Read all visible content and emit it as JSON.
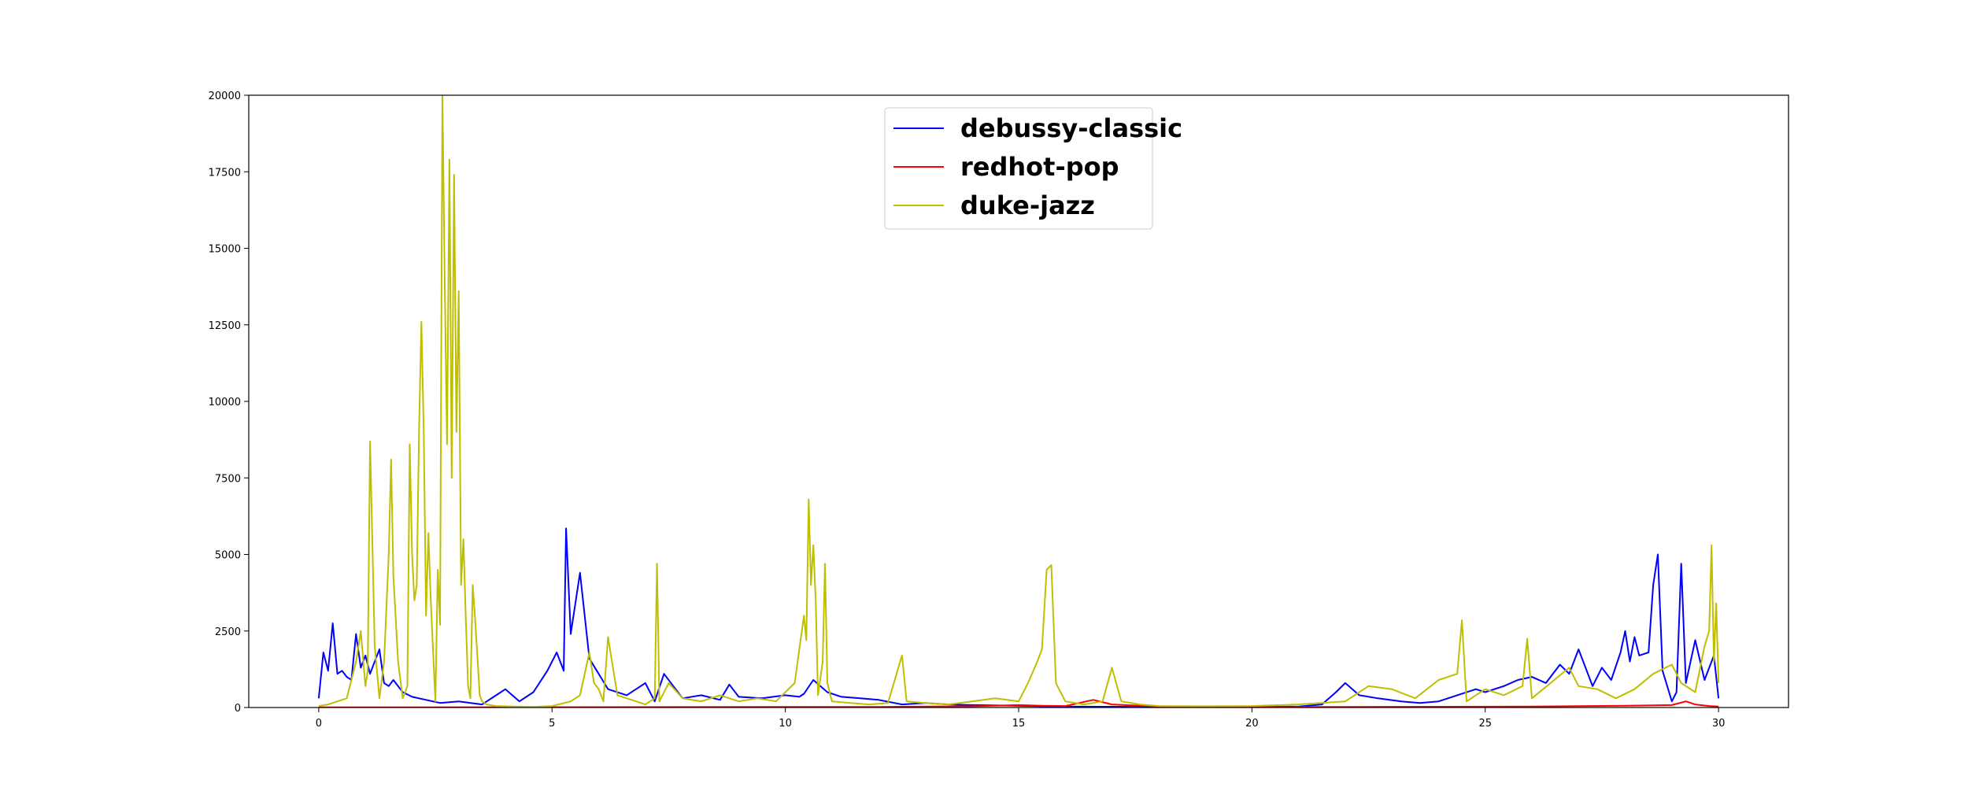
{
  "chart_data": {
    "type": "line",
    "title": "",
    "xlabel": "",
    "ylabel": "",
    "xlim": [
      -1.5,
      31.5
    ],
    "ylim": [
      0,
      20000
    ],
    "xticks": [
      0,
      5,
      10,
      15,
      20,
      25,
      30
    ],
    "xtick_labels": [
      "0",
      "5",
      "10",
      "15",
      "20",
      "25",
      "30"
    ],
    "yticks": [
      0,
      2500,
      5000,
      7500,
      10000,
      12500,
      15000,
      17500,
      20000
    ],
    "ytick_labels": [
      "0",
      "2500",
      "5000",
      "7500",
      "10000",
      "12500",
      "15000",
      "17500",
      "20000"
    ],
    "grid": false,
    "legend_position": "upper-center",
    "series": [
      {
        "name": "debussy-classic",
        "color": "#0000ff",
        "x": [
          0,
          0.1,
          0.2,
          0.3,
          0.4,
          0.5,
          0.6,
          0.7,
          0.8,
          0.9,
          1.0,
          1.1,
          1.2,
          1.3,
          1.4,
          1.5,
          1.6,
          1.8,
          2.0,
          2.3,
          2.6,
          3.0,
          3.5,
          4.0,
          4.3,
          4.6,
          4.9,
          5.1,
          5.25,
          5.3,
          5.4,
          5.5,
          5.6,
          5.8,
          6.2,
          6.6,
          7.0,
          7.2,
          7.4,
          7.8,
          8.2,
          8.6,
          8.8,
          9.0,
          9.5,
          10.0,
          10.3,
          10.4,
          10.6,
          10.9,
          11.2,
          11.6,
          12.0,
          12.5,
          13.0,
          13.5,
          14.0,
          15.0,
          15.5,
          16.0,
          17.0,
          18.0,
          19.0,
          20.0,
          21.0,
          21.5,
          21.8,
          22.0,
          22.3,
          22.7,
          23.2,
          23.6,
          24.0,
          24.4,
          24.8,
          25.0,
          25.4,
          25.7,
          26.0,
          26.3,
          26.6,
          26.8,
          27.0,
          27.3,
          27.5,
          27.7,
          27.9,
          28.0,
          28.1,
          28.2,
          28.3,
          28.5,
          28.6,
          28.7,
          28.8,
          29.0,
          29.1,
          29.2,
          29.3,
          29.5,
          29.7,
          29.9,
          30.0
        ],
        "values": [
          300,
          1800,
          1200,
          2750,
          1100,
          1200,
          1000,
          900,
          2400,
          1300,
          1700,
          1100,
          1500,
          1900,
          800,
          700,
          900,
          500,
          350,
          250,
          150,
          200,
          100,
          600,
          200,
          500,
          1200,
          1800,
          1200,
          5850,
          2400,
          3400,
          4400,
          1600,
          600,
          400,
          800,
          200,
          1100,
          300,
          400,
          250,
          750,
          350,
          300,
          400,
          350,
          450,
          900,
          500,
          350,
          300,
          250,
          100,
          150,
          100,
          80,
          60,
          40,
          30,
          25,
          20,
          20,
          20,
          30,
          100,
          500,
          800,
          400,
          300,
          200,
          150,
          200,
          400,
          600,
          500,
          700,
          900,
          1000,
          800,
          1400,
          1100,
          1900,
          700,
          1300,
          900,
          1800,
          2500,
          1500,
          2300,
          1700,
          1800,
          4000,
          5000,
          1200,
          200,
          500,
          4700,
          800,
          2200,
          900,
          1700,
          300
        ],
        "peaks_note": ""
      },
      {
        "name": "redhot-pop",
        "color": "#ff0000",
        "x": [
          0,
          2,
          4,
          6,
          8,
          10,
          12,
          14,
          15,
          15.5,
          16,
          16.3,
          16.6,
          17,
          18,
          20,
          22,
          24,
          26,
          28,
          29,
          29.3,
          29.5,
          29.8,
          30
        ],
        "values": [
          5,
          8,
          10,
          12,
          15,
          18,
          20,
          40,
          80,
          60,
          50,
          150,
          250,
          100,
          30,
          15,
          20,
          25,
          30,
          60,
          80,
          200,
          100,
          50,
          30
        ]
      },
      {
        "name": "duke-jazz",
        "color": "#bfbf00",
        "x": [
          0,
          0.2,
          0.4,
          0.6,
          0.8,
          0.9,
          1.0,
          1.05,
          1.1,
          1.2,
          1.3,
          1.4,
          1.5,
          1.55,
          1.6,
          1.7,
          1.8,
          1.9,
          1.95,
          2.0,
          2.05,
          2.1,
          2.15,
          2.2,
          2.25,
          2.3,
          2.35,
          2.4,
          2.5,
          2.55,
          2.6,
          2.65,
          2.7,
          2.75,
          2.8,
          2.85,
          2.9,
          2.95,
          3.0,
          3.05,
          3.1,
          3.15,
          3.2,
          3.25,
          3.3,
          3.35,
          3.4,
          3.45,
          3.5,
          3.6,
          3.8,
          4.2,
          4.6,
          5.0,
          5.4,
          5.6,
          5.8,
          5.9,
          6.0,
          6.1,
          6.2,
          6.4,
          6.8,
          7.0,
          7.2,
          7.25,
          7.3,
          7.5,
          7.8,
          8.2,
          8.6,
          9.0,
          9.4,
          9.8,
          10.2,
          10.4,
          10.45,
          10.5,
          10.55,
          10.6,
          10.65,
          10.7,
          10.8,
          10.85,
          10.9,
          11.0,
          11.4,
          11.8,
          12.2,
          12.5,
          12.6,
          13.0,
          13.5,
          14.0,
          14.5,
          15.0,
          15.2,
          15.4,
          15.5,
          15.6,
          15.7,
          15.8,
          16.0,
          16.4,
          16.8,
          17.0,
          17.2,
          17.6,
          18.0,
          19.0,
          20.0,
          21.0,
          22.0,
          22.5,
          23.0,
          23.5,
          24.0,
          24.4,
          24.5,
          24.6,
          24.8,
          25.0,
          25.4,
          25.8,
          25.9,
          26.0,
          26.4,
          26.8,
          27.0,
          27.4,
          27.8,
          28.2,
          28.6,
          29.0,
          29.2,
          29.5,
          29.7,
          29.8,
          29.85,
          29.9,
          29.95,
          30.0
        ],
        "values": [
          50,
          100,
          200,
          300,
          1500,
          2500,
          700,
          1200,
          8700,
          2000,
          300,
          1500,
          5000,
          8100,
          4300,
          1500,
          300,
          700,
          8600,
          5000,
          3500,
          4000,
          9000,
          12600,
          9000,
          3000,
          5700,
          3500,
          200,
          4500,
          2700,
          20000,
          14000,
          8600,
          17900,
          7500,
          17400,
          9000,
          13600,
          4000,
          5500,
          3000,
          700,
          300,
          4000,
          2900,
          1700,
          400,
          200,
          100,
          50,
          30,
          20,
          50,
          200,
          400,
          1800,
          800,
          600,
          200,
          2300,
          400,
          200,
          100,
          300,
          4700,
          200,
          800,
          300,
          200,
          400,
          200,
          300,
          200,
          800,
          3000,
          2200,
          6800,
          4000,
          5300,
          3500,
          400,
          1500,
          4700,
          800,
          200,
          150,
          100,
          150,
          1700,
          200,
          150,
          100,
          200,
          300,
          200,
          800,
          1500,
          1900,
          4500,
          4650,
          800,
          200,
          100,
          200,
          1300,
          200,
          100,
          50,
          40,
          50,
          100,
          200,
          700,
          600,
          300,
          900,
          1100,
          2850,
          200,
          400,
          600,
          400,
          700,
          2250,
          300,
          800,
          1300,
          700,
          600,
          300,
          600,
          1100,
          1400,
          800,
          500,
          2000,
          2500,
          5300,
          1500,
          3400,
          800
        ]
      }
    ]
  }
}
